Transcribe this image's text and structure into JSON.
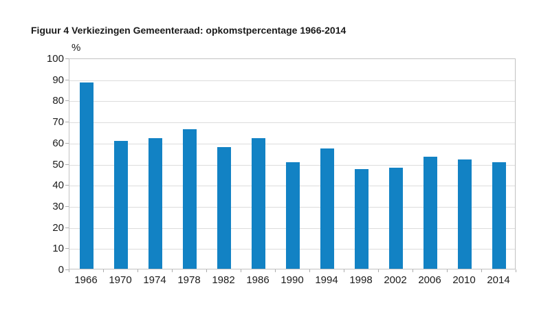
{
  "figure": {
    "title": "Figuur 4 Verkiezingen Gemeenteraad: opkomstpercentage 1966-2014",
    "unit_label": "%"
  },
  "chart_data": {
    "type": "bar",
    "title": "Figuur 4 Verkiezingen Gemeenteraad: opkomstpercentage 1966-2014",
    "xlabel": "",
    "ylabel": "%",
    "categories": [
      "1966",
      "1970",
      "1974",
      "1978",
      "1982",
      "1986",
      "1990",
      "1994",
      "1998",
      "2002",
      "2006",
      "2010",
      "2014"
    ],
    "values": [
      88.2,
      60.5,
      62,
      66,
      57.5,
      62,
      50.5,
      57,
      47.3,
      48,
      53,
      51.9,
      50.5
    ],
    "ylim": [
      0,
      100
    ],
    "ytick_step": 10,
    "ytick_labels": [
      "0",
      "10",
      "20",
      "30",
      "40",
      "50",
      "60",
      "70",
      "80",
      "90",
      "100"
    ],
    "grid": "horizontal",
    "legend": "none",
    "colors": {
      "bar": "#1282c4",
      "grid": "#dcdcdc",
      "border": "#c2c2c2",
      "tick": "#ababab",
      "text": "#1a1a1a",
      "background": "#ffffff"
    }
  }
}
